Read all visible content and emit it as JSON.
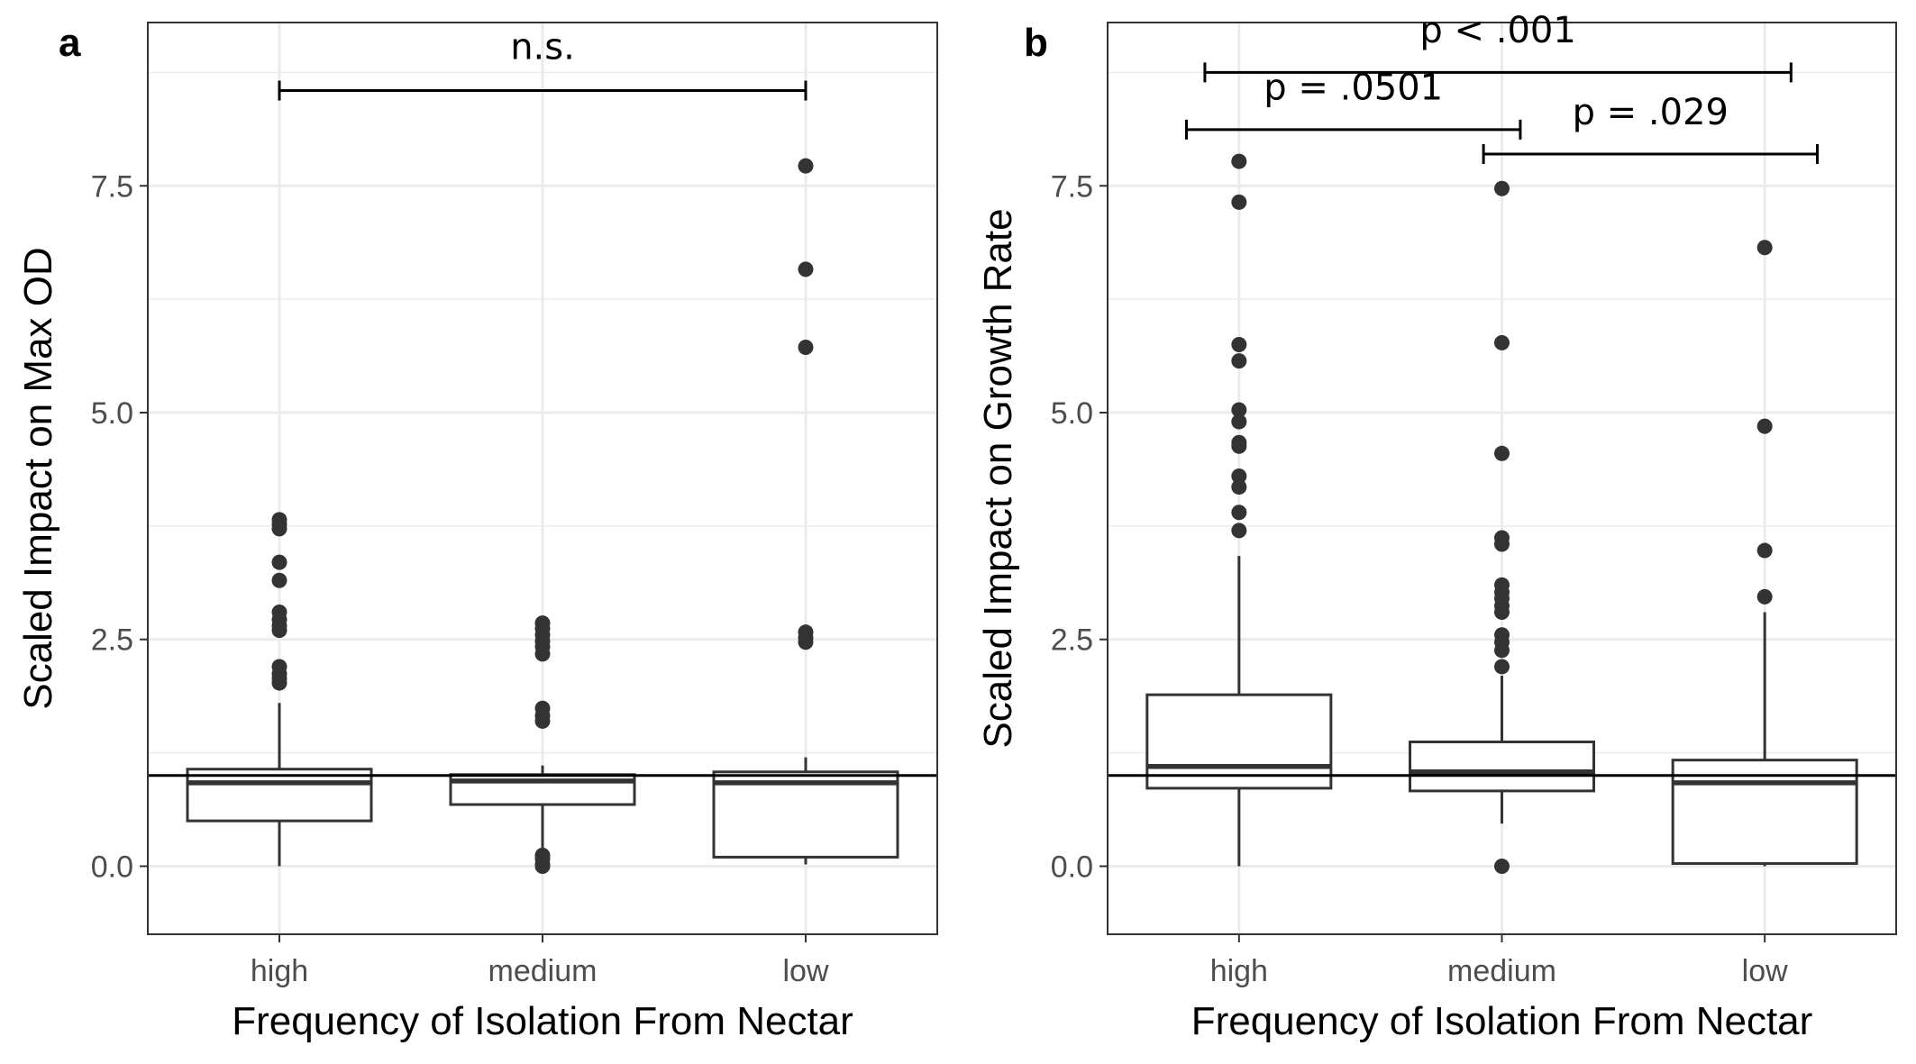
{
  "chart_data": [
    {
      "type": "box",
      "panel_label": "a",
      "xlabel": "Frequency of Isolation From Nectar",
      "ylabel": "Scaled Impact on Max OD",
      "categories": [
        "high",
        "medium",
        "low"
      ],
      "ylim": [
        -0.75,
        9.3
      ],
      "yticks": [
        0.0,
        2.5,
        5.0,
        7.5
      ],
      "ytick_labels": [
        "0.0",
        "2.5",
        "5.0",
        "7.5"
      ],
      "reference_line_y": 1.0,
      "grid": true,
      "boxes": [
        {
          "category": "high",
          "whisker_low": 0.0,
          "q1": 0.5,
          "median": 0.92,
          "q3": 1.07,
          "whisker_high": 1.8,
          "outliers": [
            3.82,
            3.77,
            3.72,
            3.35,
            3.15,
            2.8,
            2.72,
            2.65,
            2.6,
            2.2,
            2.12,
            2.07,
            2.02
          ]
        },
        {
          "category": "medium",
          "whisker_low": 0.15,
          "q1": 0.68,
          "median": 0.94,
          "q3": 1.01,
          "whisker_high": 1.11,
          "outliers": [
            2.68,
            2.62,
            2.55,
            2.48,
            2.42,
            2.34,
            1.74,
            1.66,
            1.6,
            0.12,
            0.08,
            0.02,
            0.0
          ]
        },
        {
          "category": "low",
          "whisker_low": 0.02,
          "q1": 0.1,
          "median": 0.92,
          "q3": 1.04,
          "whisker_high": 1.2,
          "outliers": [
            7.72,
            6.58,
            5.72,
            2.58,
            2.52,
            2.47
          ]
        }
      ],
      "annotations": [
        {
          "label": "n.s.",
          "from": "high",
          "to": "low",
          "y": 8.55,
          "label_y": 8.9
        }
      ]
    },
    {
      "type": "box",
      "panel_label": "b",
      "xlabel": "Frequency of Isolation From Nectar",
      "ylabel": "Scaled Impact on Growth Rate",
      "categories": [
        "high",
        "medium",
        "low"
      ],
      "ylim": [
        -0.75,
        9.3
      ],
      "yticks": [
        0.0,
        2.5,
        5.0,
        7.5
      ],
      "ytick_labels": [
        "0.0",
        "2.5",
        "5.0",
        "7.5"
      ],
      "reference_line_y": 1.0,
      "grid": true,
      "boxes": [
        {
          "category": "high",
          "whisker_low": 0.0,
          "q1": 0.86,
          "median": 1.1,
          "q3": 1.89,
          "whisker_high": 3.42,
          "outliers": [
            7.77,
            7.32,
            5.75,
            5.57,
            5.03,
            4.9,
            4.67,
            4.63,
            4.3,
            4.18,
            3.9,
            3.7
          ]
        },
        {
          "category": "medium",
          "whisker_low": 0.47,
          "q1": 0.83,
          "median": 1.04,
          "q3": 1.37,
          "whisker_high": 2.1,
          "outliers": [
            7.47,
            5.77,
            4.55,
            3.62,
            3.55,
            3.1,
            3.02,
            2.95,
            2.87,
            2.8,
            2.55,
            2.47,
            2.38,
            2.2,
            0.0
          ]
        },
        {
          "category": "low",
          "whisker_low": 0.0,
          "q1": 0.03,
          "median": 0.92,
          "q3": 1.17,
          "whisker_high": 2.8,
          "outliers": [
            6.82,
            4.85,
            3.48,
            2.97
          ]
        }
      ],
      "annotations": [
        {
          "label": "p < .001",
          "from": "high",
          "to": "low",
          "y": 8.75,
          "label_y": 9.08,
          "from_offset": -0.13,
          "to_offset": 0.1
        },
        {
          "label": "p = .0501",
          "from": "high",
          "to": "medium",
          "y": 8.12,
          "label_y": 8.45,
          "from_offset": -0.2,
          "to_offset": 0.07
        },
        {
          "label": "p = .029",
          "from": "medium",
          "to": "low",
          "y": 7.85,
          "label_y": 8.18,
          "from_offset": -0.07,
          "to_offset": 0.2
        }
      ]
    }
  ]
}
